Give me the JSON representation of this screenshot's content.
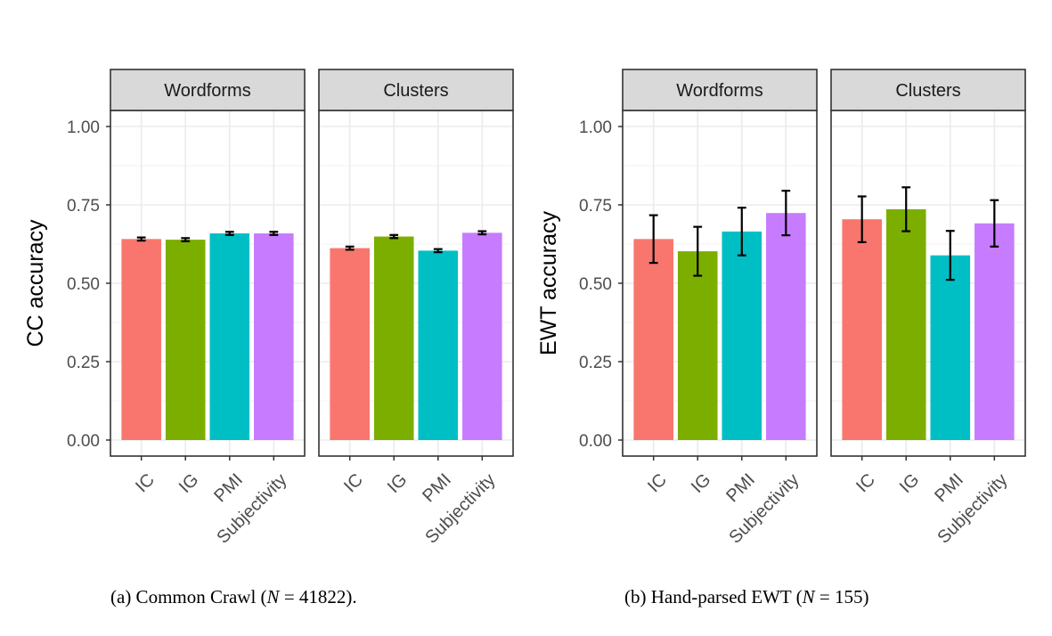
{
  "chart_data": [
    {
      "type": "bar",
      "ylabel": "CC accuracy",
      "ylim": [
        0,
        1.05
      ],
      "yticks": [
        "0.00",
        "0.25",
        "0.50",
        "0.75",
        "1.00"
      ],
      "categories": [
        "IC",
        "IG",
        "PMI",
        "Subjectivity"
      ],
      "colors": [
        "#F8766D",
        "#7CAE00",
        "#00BFC4",
        "#C77CFF"
      ],
      "facets": [
        {
          "title": "Wordforms",
          "values": [
            0.641,
            0.639,
            0.659,
            0.659
          ],
          "errors": [
            0.005,
            0.005,
            0.005,
            0.005
          ]
        },
        {
          "title": "Clusters",
          "values": [
            0.612,
            0.649,
            0.604,
            0.661
          ],
          "errors": [
            0.005,
            0.005,
            0.005,
            0.005
          ]
        }
      ]
    },
    {
      "type": "bar",
      "ylabel": "EWT accuracy",
      "ylim": [
        0,
        1.05
      ],
      "yticks": [
        "0.00",
        "0.25",
        "0.50",
        "0.75",
        "1.00"
      ],
      "categories": [
        "IC",
        "IG",
        "PMI",
        "Subjectivity"
      ],
      "colors": [
        "#F8766D",
        "#7CAE00",
        "#00BFC4",
        "#C77CFF"
      ],
      "facets": [
        {
          "title": "Wordforms",
          "values": [
            0.641,
            0.602,
            0.665,
            0.724
          ],
          "errors": [
            0.076,
            0.078,
            0.076,
            0.071
          ]
        },
        {
          "title": "Clusters",
          "values": [
            0.704,
            0.736,
            0.589,
            0.691
          ],
          "errors": [
            0.073,
            0.07,
            0.078,
            0.074
          ]
        }
      ]
    }
  ],
  "captions": [
    {
      "prefix": "(a) Common Crawl (",
      "var": "N",
      "op": " = ",
      "num": "41822",
      "suffix": ")."
    },
    {
      "prefix": "(b) Hand-parsed EWT (",
      "var": "N",
      "op": " = ",
      "num": "155",
      "suffix": ")"
    }
  ]
}
